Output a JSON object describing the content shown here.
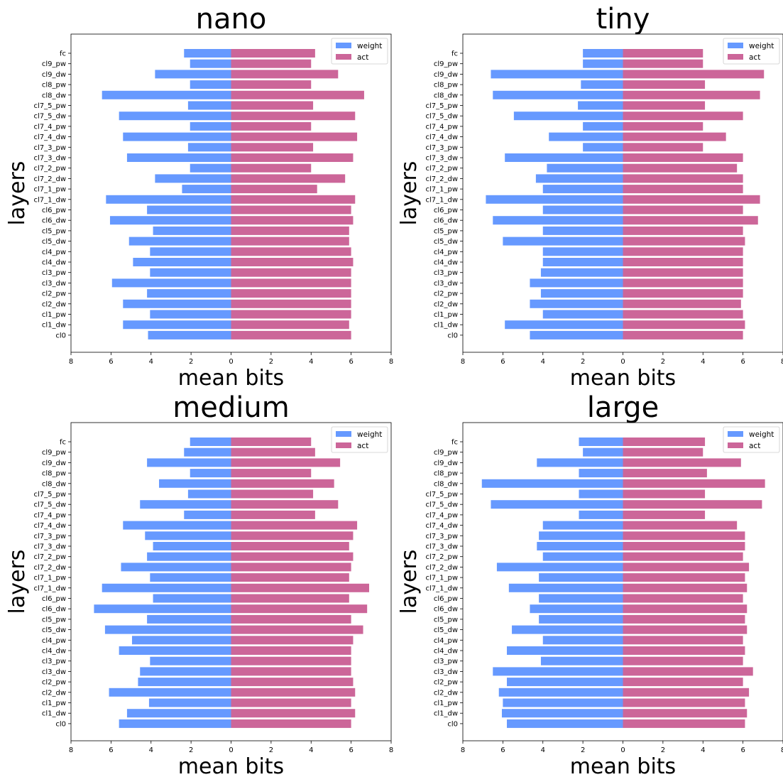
{
  "colors": {
    "weight": "#6699ff",
    "act": "#cc6699"
  },
  "chart_data": [
    {
      "type": "bar",
      "title": "nano",
      "xlabel": "mean bits",
      "ylabel": "layers",
      "xlim": [
        -8,
        8
      ],
      "xtick_labels": [
        "8",
        "6",
        "4",
        "2",
        "0",
        "2",
        "4",
        "6",
        "8"
      ],
      "legend_placement": "top-right",
      "categories": [
        "fc",
        "cl9_pw",
        "cl9_dw",
        "cl8_pw",
        "cl8_dw",
        "cl7_5_pw",
        "cl7_5_dw",
        "cl7_4_pw",
        "cl7_4_dw",
        "cl7_3_pw",
        "cl7_3_dw",
        "cl7_2_pw",
        "cl7_2_dw",
        "cl7_1_pw",
        "cl7_1_dw",
        "cl6_pw",
        "cl6_dw",
        "cl5_pw",
        "cl5_dw",
        "cl4_pw",
        "cl4_dw",
        "cl3_pw",
        "cl3_dw",
        "cl2_pw",
        "cl2_dw",
        "cl1_pw",
        "cl1_dw",
        "cl0"
      ],
      "series": [
        {
          "name": "weight",
          "values": [
            2.35,
            2.05,
            3.8,
            2.05,
            6.45,
            2.15,
            5.6,
            2.05,
            5.4,
            2.15,
            5.2,
            2.05,
            3.8,
            2.45,
            6.25,
            4.2,
            6.05,
            3.9,
            5.1,
            4.05,
            4.9,
            4.05,
            5.95,
            4.2,
            5.4,
            4.05,
            5.4,
            4.15
          ]
        },
        {
          "name": "act",
          "values": [
            4.2,
            4.0,
            5.35,
            4.0,
            6.65,
            4.1,
            6.2,
            4.0,
            6.3,
            4.1,
            6.1,
            4.0,
            5.7,
            4.3,
            6.2,
            6.0,
            6.1,
            5.9,
            5.9,
            6.0,
            6.1,
            6.0,
            6.0,
            6.0,
            6.0,
            6.0,
            5.9,
            6.0
          ]
        }
      ]
    },
    {
      "type": "bar",
      "title": "tiny",
      "xlabel": "mean bits",
      "ylabel": "layers",
      "xlim": [
        -8,
        8
      ],
      "xtick_labels": [
        "8",
        "6",
        "4",
        "2",
        "0",
        "2",
        "4",
        "6",
        "8"
      ],
      "legend_placement": "top-right",
      "categories": [
        "fc",
        "cl9_pw",
        "cl9_dw",
        "cl8_pw",
        "cl8_dw",
        "cl7_5_pw",
        "cl7_5_dw",
        "cl7_4_pw",
        "cl7_4_dw",
        "cl7_3_pw",
        "cl7_3_dw",
        "cl7_2_pw",
        "cl7_2_dw",
        "cl7_1_pw",
        "cl7_1_dw",
        "cl6_pw",
        "cl6_dw",
        "cl5_pw",
        "cl5_dw",
        "cl4_pw",
        "cl4_dw",
        "cl3_pw",
        "cl3_dw",
        "cl2_pw",
        "cl2_dw",
        "cl1_pw",
        "cl1_dw",
        "cl0"
      ],
      "series": [
        {
          "name": "weight",
          "values": [
            2.0,
            2.0,
            6.6,
            2.1,
            6.5,
            2.25,
            5.45,
            2.0,
            3.7,
            2.0,
            5.9,
            3.8,
            4.35,
            4.0,
            6.85,
            4.0,
            6.5,
            4.0,
            6.0,
            4.0,
            4.0,
            4.1,
            4.65,
            4.1,
            4.65,
            4.0,
            5.9,
            4.65
          ]
        },
        {
          "name": "act",
          "values": [
            4.0,
            4.0,
            7.05,
            4.1,
            6.85,
            4.1,
            6.0,
            4.0,
            5.15,
            4.0,
            6.0,
            5.7,
            6.0,
            6.0,
            6.85,
            6.0,
            6.75,
            6.0,
            6.1,
            6.0,
            6.0,
            6.0,
            6.0,
            6.0,
            5.9,
            6.0,
            6.1,
            6.0
          ]
        }
      ]
    },
    {
      "type": "bar",
      "title": "medium",
      "xlabel": "mean bits",
      "ylabel": "layers",
      "xlim": [
        -8,
        8
      ],
      "xtick_labels": [
        "8",
        "6",
        "4",
        "2",
        "0",
        "2",
        "4",
        "6",
        "8"
      ],
      "legend_placement": "top-right",
      "categories": [
        "fc",
        "cl9_pw",
        "cl9_dw",
        "cl8_pw",
        "cl8_dw",
        "cl7_5_pw",
        "cl7_5_dw",
        "cl7_4_pw",
        "cl7_4_dw",
        "cl7_3_pw",
        "cl7_3_dw",
        "cl7_2_pw",
        "cl7_2_dw",
        "cl7_1_pw",
        "cl7_1_dw",
        "cl6_pw",
        "cl6_dw",
        "cl5_pw",
        "cl5_dw",
        "cl4_pw",
        "cl4_dw",
        "cl3_pw",
        "cl3_dw",
        "cl2_pw",
        "cl2_dw",
        "cl1_pw",
        "cl1_dw",
        "cl0"
      ],
      "series": [
        {
          "name": "weight",
          "values": [
            2.05,
            2.35,
            4.2,
            2.05,
            3.6,
            2.15,
            4.55,
            2.35,
            5.4,
            4.3,
            3.9,
            4.2,
            5.5,
            4.05,
            6.45,
            3.9,
            6.85,
            4.2,
            6.3,
            4.95,
            5.6,
            4.05,
            4.55,
            4.65,
            6.1,
            4.1,
            5.2,
            5.6
          ]
        },
        {
          "name": "act",
          "values": [
            4.0,
            4.2,
            5.45,
            4.0,
            5.15,
            4.1,
            5.35,
            4.2,
            6.3,
            6.1,
            5.9,
            6.1,
            6.0,
            5.9,
            6.9,
            5.9,
            6.8,
            6.0,
            6.6,
            6.1,
            6.0,
            6.0,
            6.0,
            6.1,
            6.2,
            6.0,
            6.2,
            6.0
          ]
        }
      ]
    },
    {
      "type": "bar",
      "title": "large",
      "xlabel": "mean bits",
      "ylabel": "layers",
      "xlim": [
        -8,
        8
      ],
      "xtick_labels": [
        "8",
        "6",
        "4",
        "2",
        "0",
        "2",
        "4",
        "6",
        "8"
      ],
      "legend_placement": "top-right",
      "categories": [
        "fc",
        "cl9_pw",
        "cl9_dw",
        "cl8_pw",
        "cl8_dw",
        "cl7_5_pw",
        "cl7_5_dw",
        "cl7_4_pw",
        "cl7_4_dw",
        "cl7_3_pw",
        "cl7_3_dw",
        "cl7_2_pw",
        "cl7_2_dw",
        "cl7_1_pw",
        "cl7_1_dw",
        "cl6_pw",
        "cl6_dw",
        "cl5_pw",
        "cl5_dw",
        "cl4_pw",
        "cl4_dw",
        "cl3_pw",
        "cl3_dw",
        "cl2_pw",
        "cl2_dw",
        "cl1_pw",
        "cl1_dw",
        "cl0"
      ],
      "series": [
        {
          "name": "weight",
          "values": [
            2.2,
            2.0,
            4.3,
            2.2,
            7.05,
            2.2,
            6.6,
            2.2,
            4.0,
            4.2,
            4.3,
            4.0,
            6.3,
            4.2,
            5.7,
            4.2,
            4.65,
            4.2,
            5.55,
            4.0,
            5.8,
            4.1,
            6.5,
            5.8,
            6.2,
            6.0,
            6.05,
            5.8
          ]
        },
        {
          "name": "act",
          "values": [
            4.1,
            4.0,
            5.9,
            4.2,
            7.1,
            4.1,
            6.95,
            4.1,
            5.7,
            6.1,
            6.1,
            6.0,
            6.3,
            6.1,
            6.2,
            6.0,
            6.2,
            6.1,
            6.2,
            6.0,
            6.1,
            6.0,
            6.5,
            6.0,
            6.3,
            6.1,
            6.2,
            6.1
          ]
        }
      ]
    }
  ]
}
